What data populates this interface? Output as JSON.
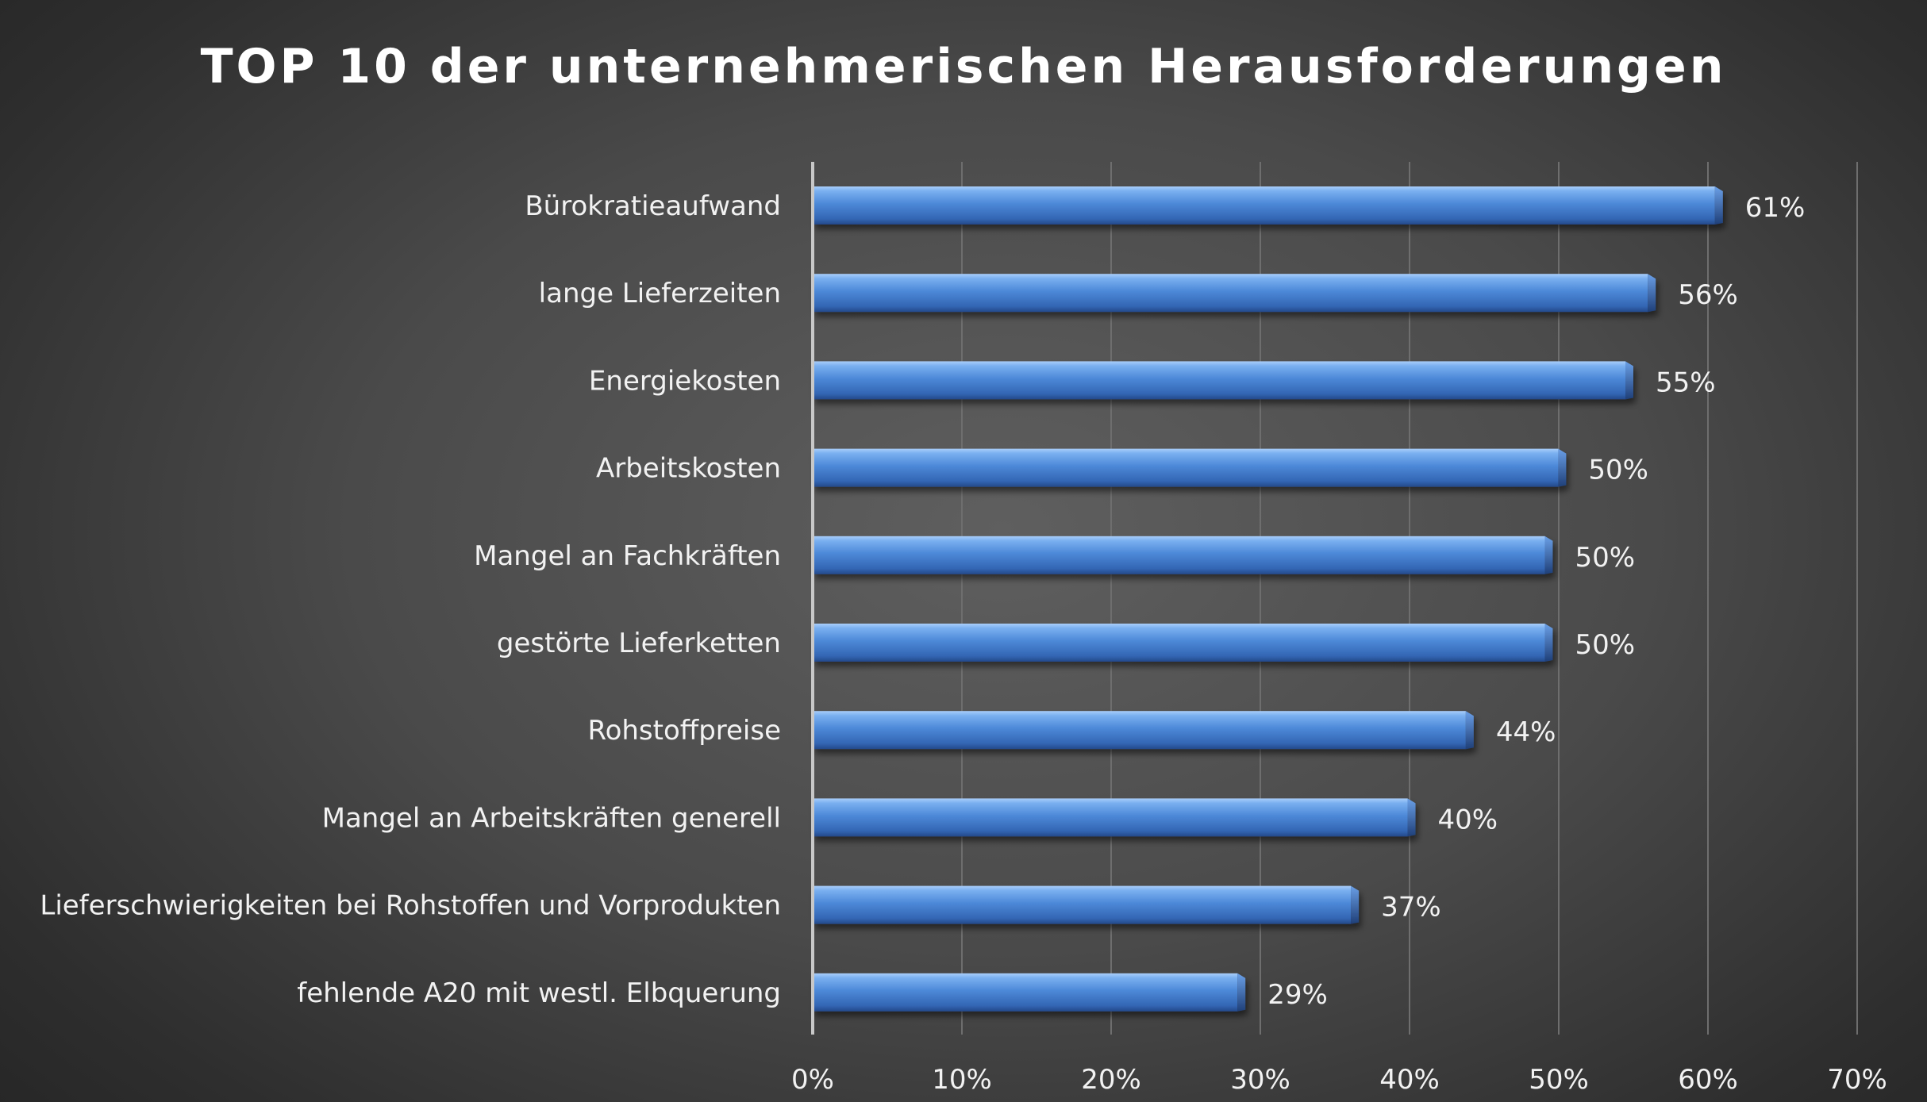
{
  "chart_data": {
    "type": "bar",
    "orientation": "horizontal",
    "title": "TOP 10 der unternehmerischen Herausforderungen",
    "categories": [
      "Bürokratieaufwand",
      "lange Lieferzeiten",
      "Energiekosten",
      "Arbeitskosten",
      "Mangel an Fachkräften",
      "gestörte Lieferketten",
      "Rohstoffpreise",
      "Mangel an Arbeitskräften generell",
      "Lieferschwierigkeiten bei Rohstoffen und Vorprodukten",
      "fehlende A20 mit westl. Elbquerung"
    ],
    "values": [
      61,
      56.5,
      55,
      50.5,
      49.6,
      49.6,
      44.3,
      40.4,
      36.6,
      29
    ],
    "value_labels": [
      "61%",
      "56%",
      "55%",
      "50%",
      "50%",
      "50%",
      "44%",
      "40%",
      "37%",
      "29%"
    ],
    "x_ticks": [
      "0%",
      "10%",
      "20%",
      "30%",
      "40%",
      "50%",
      "60%",
      "70%"
    ],
    "xlim": [
      0,
      70
    ],
    "xlabel": "",
    "ylabel": "",
    "grid": true,
    "legend": "none",
    "bar_color": "#4a86d6"
  }
}
